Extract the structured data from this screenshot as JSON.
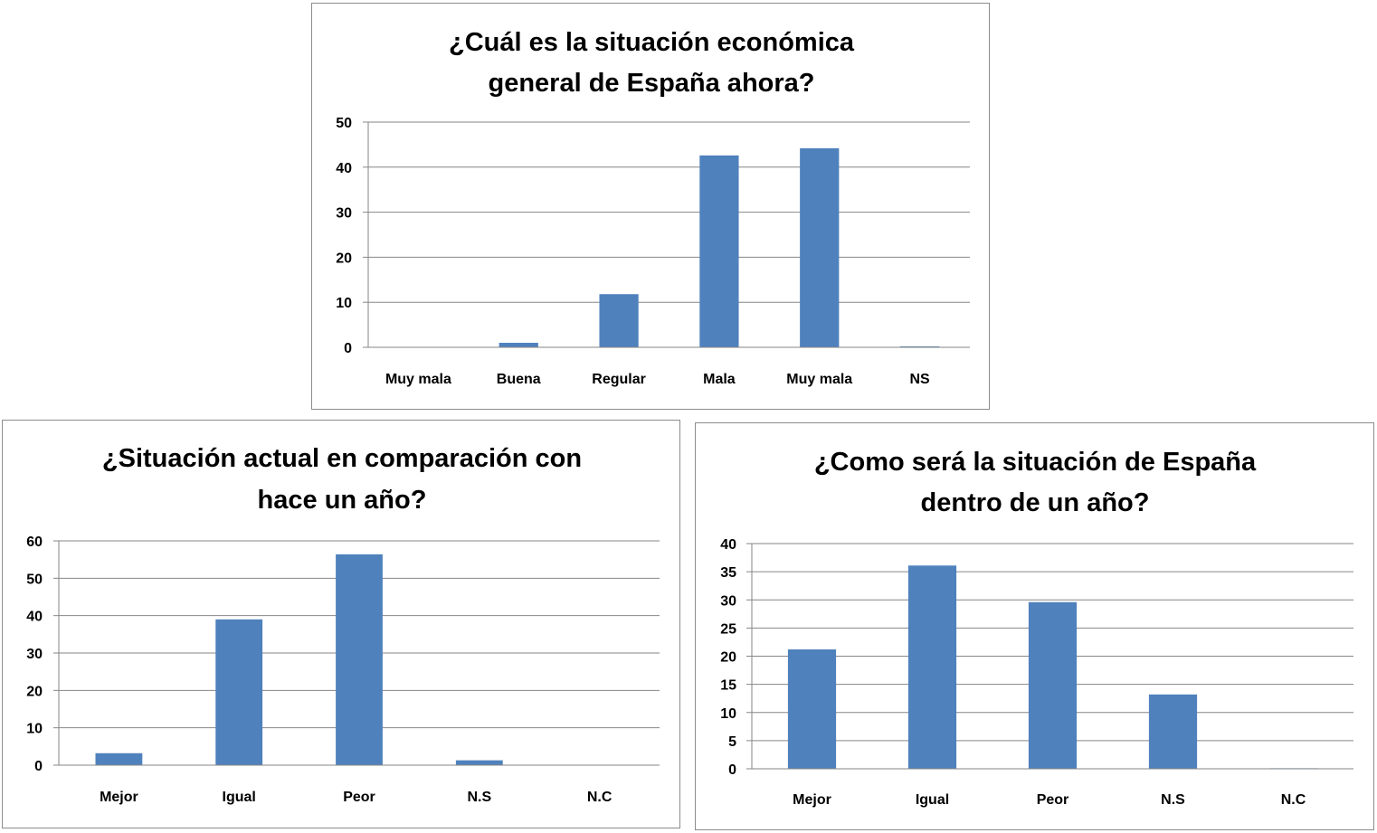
{
  "colors": {
    "bar": "#4f81bd",
    "grid": "#868686",
    "border": "#8c8c8c"
  },
  "chart_data": [
    {
      "type": "bar",
      "title_lines": [
        "¿Cuál es la situación económica",
        "general de España ahora?"
      ],
      "categories": [
        "Muy mala",
        "Buena",
        "Regular",
        "Mala",
        "Muy mala",
        "NS"
      ],
      "values": [
        0,
        1,
        11.8,
        42.6,
        44.2,
        0.2
      ],
      "ylim": [
        0,
        50
      ],
      "yticks": [
        0,
        10,
        20,
        30,
        40,
        50
      ],
      "grid": true,
      "legend": "none",
      "xlabel": "",
      "ylabel": ""
    },
    {
      "type": "bar",
      "title_lines": [
        "¿Situación actual en comparación con",
        "hace un año?"
      ],
      "categories": [
        "Mejor",
        "Igual",
        "Peor",
        "N.S",
        "N.C"
      ],
      "values": [
        3.2,
        39,
        56.4,
        1.3,
        0
      ],
      "ylim": [
        0,
        60
      ],
      "yticks": [
        0,
        10,
        20,
        30,
        40,
        50,
        60
      ],
      "grid": true,
      "legend": "none",
      "xlabel": "",
      "ylabel": ""
    },
    {
      "type": "bar",
      "title_lines": [
        "¿Como será la situación de España",
        "dentro de un año?"
      ],
      "categories": [
        "Mejor",
        "Igual",
        "Peor",
        "N.S",
        "N.C"
      ],
      "values": [
        21.2,
        36.1,
        29.6,
        13.2,
        0.1
      ],
      "ylim": [
        0,
        40
      ],
      "yticks": [
        0,
        5,
        10,
        15,
        20,
        25,
        30,
        35,
        40
      ],
      "grid": true,
      "legend": "none",
      "xlabel": "",
      "ylabel": ""
    }
  ]
}
